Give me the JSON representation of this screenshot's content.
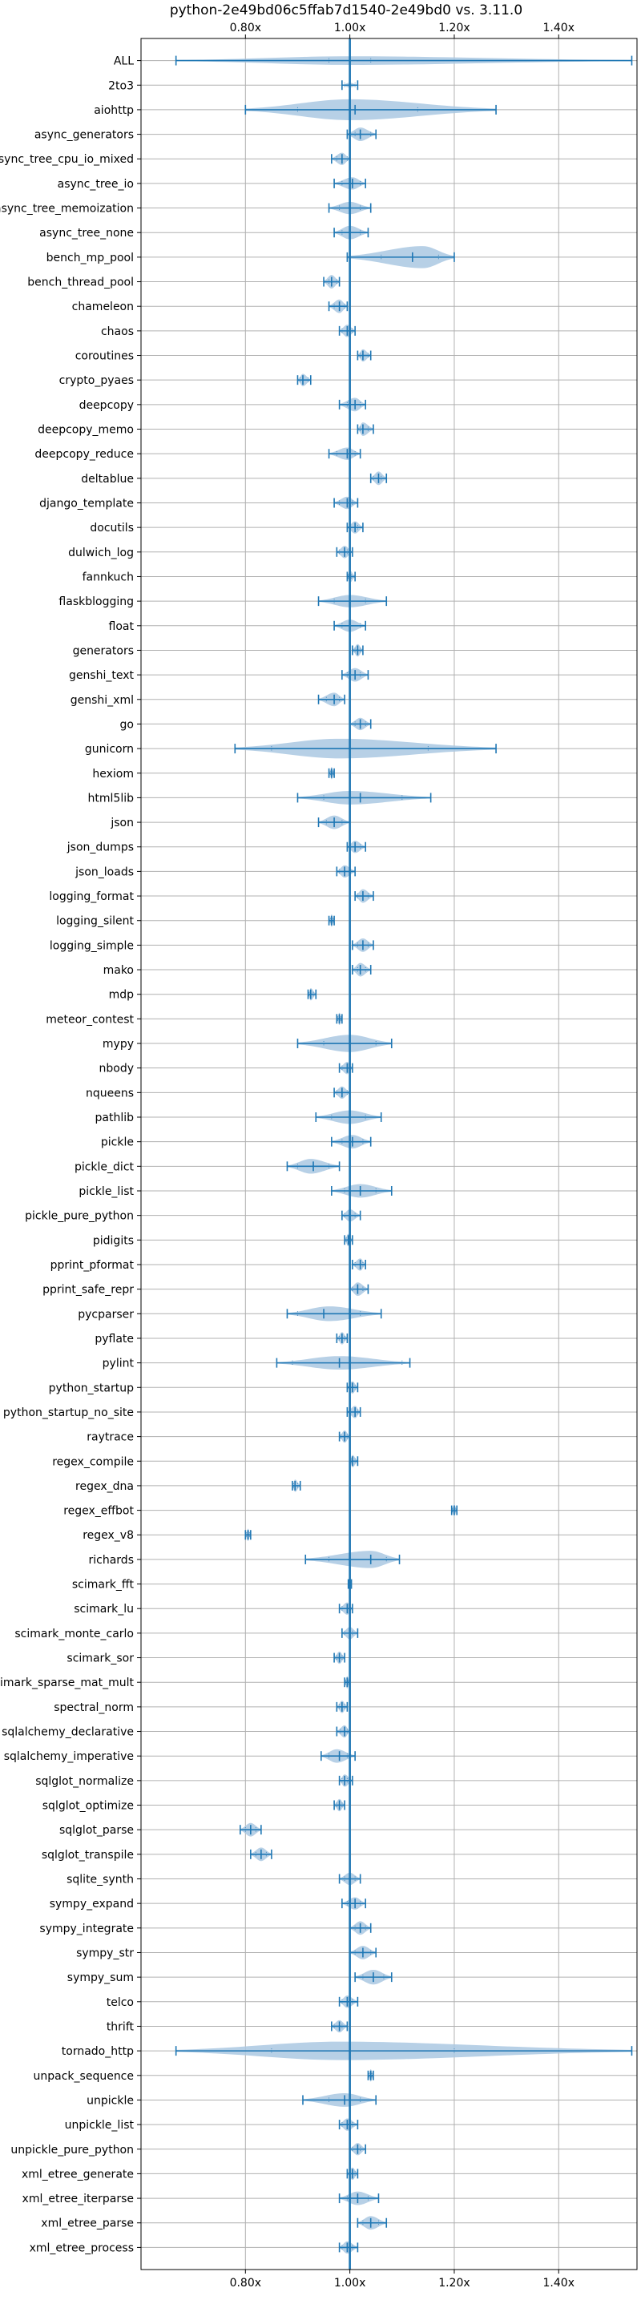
{
  "chart_data": {
    "type": "violin",
    "title": "python-2e49bd06c5ffab7d1540-2e49bd0 vs. 3.11.0",
    "xlabel": "",
    "ylabel": "",
    "xlim": [
      0.6,
      1.55
    ],
    "xticks": [
      0.8,
      1.0,
      1.2,
      1.4
    ],
    "xtick_labels": [
      "0.80x",
      "1.00x",
      "1.20x",
      "1.40x"
    ],
    "tick_positions": [
      "top",
      "bottom"
    ],
    "grid": true,
    "reference_line": 1.0,
    "colors": {
      "violin": "#aac8e2",
      "line": "#1f77b4",
      "grid": "#b0b0b0",
      "axis": "#000000"
    },
    "categories": [
      "ALL",
      "2to3",
      "aiohttp",
      "async_generators",
      "async_tree_cpu_io_mixed",
      "async_tree_io",
      "async_tree_memoization",
      "async_tree_none",
      "bench_mp_pool",
      "bench_thread_pool",
      "chameleon",
      "chaos",
      "coroutines",
      "crypto_pyaes",
      "deepcopy",
      "deepcopy_memo",
      "deepcopy_reduce",
      "deltablue",
      "django_template",
      "docutils",
      "dulwich_log",
      "fannkuch",
      "flaskblogging",
      "float",
      "generators",
      "genshi_text",
      "genshi_xml",
      "go",
      "gunicorn",
      "hexiom",
      "html5lib",
      "json",
      "json_dumps",
      "json_loads",
      "logging_format",
      "logging_silent",
      "logging_simple",
      "mako",
      "mdp",
      "meteor_contest",
      "mypy",
      "nbody",
      "nqueens",
      "pathlib",
      "pickle",
      "pickle_dict",
      "pickle_list",
      "pickle_pure_python",
      "pidigits",
      "pprint_pformat",
      "pprint_safe_repr",
      "pycparser",
      "pyflate",
      "pylint",
      "python_startup",
      "python_startup_no_site",
      "raytrace",
      "regex_compile",
      "regex_dna",
      "regex_effbot",
      "regex_v8",
      "richards",
      "scimark_fft",
      "scimark_lu",
      "scimark_monte_carlo",
      "scimark_sor",
      "scimark_sparse_mat_mult",
      "spectral_norm",
      "sqlalchemy_declarative",
      "sqlalchemy_imperative",
      "sqlglot_normalize",
      "sqlglot_optimize",
      "sqlglot_parse",
      "sqlglot_transpile",
      "sqlite_synth",
      "sympy_expand",
      "sympy_integrate",
      "sympy_str",
      "sympy_sum",
      "telco",
      "thrift",
      "tornado_http",
      "unpack_sequence",
      "unpickle",
      "unpickle_list",
      "unpickle_pure_python",
      "xml_etree_generate",
      "xml_etree_iterparse",
      "xml_etree_parse",
      "xml_etree_process"
    ],
    "series": [
      {
        "min": 0.667,
        "q1": 0.96,
        "median": 1.0,
        "mean": 1.0,
        "q3": 1.04,
        "max": 1.54,
        "peak": 1.0,
        "width": 0.35
      },
      {
        "min": 0.985,
        "q1": 0.99,
        "median": 1.0,
        "mean": 1.0,
        "q3": 1.01,
        "max": 1.015,
        "peak": 1.0,
        "width": 0.2
      },
      {
        "min": 0.8,
        "q1": 0.9,
        "median": 1.01,
        "mean": 1.01,
        "q3": 1.13,
        "max": 1.28,
        "peak": 1.0,
        "width": 0.85
      },
      {
        "min": 0.995,
        "q1": 1.01,
        "median": 1.02,
        "mean": 1.02,
        "q3": 1.04,
        "max": 1.05,
        "peak": 1.02,
        "width": 0.55
      },
      {
        "min": 0.965,
        "q1": 0.975,
        "median": 0.985,
        "mean": 0.985,
        "q3": 0.995,
        "max": 1.0,
        "peak": 0.985,
        "width": 0.5
      },
      {
        "min": 0.97,
        "q1": 0.985,
        "median": 1.005,
        "mean": 1.005,
        "q3": 1.02,
        "max": 1.03,
        "peak": 1.005,
        "width": 0.5
      },
      {
        "min": 0.96,
        "q1": 0.98,
        "median": 1.0,
        "mean": 1.0,
        "q3": 1.02,
        "max": 1.04,
        "peak": 1.0,
        "width": 0.5
      },
      {
        "min": 0.97,
        "q1": 0.985,
        "median": 1.0,
        "mean": 1.0,
        "q3": 1.02,
        "max": 1.035,
        "peak": 1.0,
        "width": 0.55
      },
      {
        "min": 0.995,
        "q1": 1.06,
        "median": 1.12,
        "mean": 1.12,
        "q3": 1.17,
        "max": 1.2,
        "peak": 1.14,
        "width": 0.9
      },
      {
        "min": 0.95,
        "q1": 0.96,
        "median": 0.965,
        "mean": 0.965,
        "q3": 0.975,
        "max": 0.98,
        "peak": 0.965,
        "width": 0.55
      },
      {
        "min": 0.96,
        "q1": 0.97,
        "median": 0.98,
        "mean": 0.98,
        "q3": 0.99,
        "max": 0.995,
        "peak": 0.98,
        "width": 0.55
      },
      {
        "min": 0.98,
        "q1": 0.985,
        "median": 0.995,
        "mean": 0.995,
        "q3": 1.005,
        "max": 1.01,
        "peak": 0.995,
        "width": 0.5
      },
      {
        "min": 1.015,
        "q1": 1.02,
        "median": 1.025,
        "mean": 1.025,
        "q3": 1.035,
        "max": 1.04,
        "peak": 1.025,
        "width": 0.5
      },
      {
        "min": 0.9,
        "q1": 0.905,
        "median": 0.91,
        "mean": 0.91,
        "q3": 0.92,
        "max": 0.925,
        "peak": 0.91,
        "width": 0.5
      },
      {
        "min": 0.98,
        "q1": 0.995,
        "median": 1.01,
        "mean": 1.01,
        "q3": 1.02,
        "max": 1.03,
        "peak": 1.01,
        "width": 0.55
      },
      {
        "min": 1.015,
        "q1": 1.02,
        "median": 1.025,
        "mean": 1.025,
        "q3": 1.035,
        "max": 1.045,
        "peak": 1.025,
        "width": 0.55
      },
      {
        "min": 0.96,
        "q1": 0.975,
        "median": 0.995,
        "mean": 0.995,
        "q3": 1.01,
        "max": 1.02,
        "peak": 0.995,
        "width": 0.5
      },
      {
        "min": 1.04,
        "q1": 1.045,
        "median": 1.055,
        "mean": 1.055,
        "q3": 1.06,
        "max": 1.07,
        "peak": 1.055,
        "width": 0.55
      },
      {
        "min": 0.97,
        "q1": 0.98,
        "median": 0.995,
        "mean": 0.995,
        "q3": 1.005,
        "max": 1.015,
        "peak": 0.995,
        "width": 0.5
      },
      {
        "min": 0.995,
        "q1": 1.0,
        "median": 1.01,
        "mean": 1.01,
        "q3": 1.015,
        "max": 1.025,
        "peak": 1.01,
        "width": 0.5
      },
      {
        "min": 0.975,
        "q1": 0.98,
        "median": 0.99,
        "mean": 0.99,
        "q3": 0.995,
        "max": 1.005,
        "peak": 0.99,
        "width": 0.5
      },
      {
        "min": 0.995,
        "q1": 0.997,
        "median": 1.0,
        "mean": 1.0,
        "q3": 1.003,
        "max": 1.01,
        "peak": 1.0,
        "width": 0.5
      },
      {
        "min": 0.94,
        "q1": 0.97,
        "median": 1.0,
        "mean": 1.0,
        "q3": 1.03,
        "max": 1.07,
        "peak": 1.0,
        "width": 0.5
      },
      {
        "min": 0.97,
        "q1": 0.985,
        "median": 1.0,
        "mean": 1.0,
        "q3": 1.02,
        "max": 1.03,
        "peak": 1.0,
        "width": 0.5
      },
      {
        "min": 1.005,
        "q1": 1.01,
        "median": 1.015,
        "mean": 1.015,
        "q3": 1.02,
        "max": 1.025,
        "peak": 1.015,
        "width": 0.5
      },
      {
        "min": 0.985,
        "q1": 0.995,
        "median": 1.01,
        "mean": 1.01,
        "q3": 1.02,
        "max": 1.035,
        "peak": 1.01,
        "width": 0.55
      },
      {
        "min": 0.94,
        "q1": 0.955,
        "median": 0.97,
        "mean": 0.97,
        "q3": 0.98,
        "max": 0.99,
        "peak": 0.97,
        "width": 0.55
      },
      {
        "min": 1.0,
        "q1": 1.01,
        "median": 1.02,
        "mean": 1.02,
        "q3": 1.03,
        "max": 1.04,
        "peak": 1.02,
        "width": 0.5
      },
      {
        "min": 0.78,
        "q1": 0.85,
        "median": 1.0,
        "mean": 1.0,
        "q3": 1.15,
        "max": 1.28,
        "peak": 0.98,
        "width": 0.8
      },
      {
        "min": 0.96,
        "q1": 0.963,
        "median": 0.965,
        "mean": 0.965,
        "q3": 0.968,
        "max": 0.97,
        "peak": 0.965,
        "width": 0.5
      },
      {
        "min": 0.9,
        "q1": 0.95,
        "median": 1.02,
        "mean": 1.02,
        "q3": 1.1,
        "max": 1.155,
        "peak": 1.0,
        "width": 0.55
      },
      {
        "min": 0.94,
        "q1": 0.955,
        "median": 0.97,
        "mean": 0.97,
        "q3": 0.985,
        "max": 1.0,
        "peak": 0.97,
        "width": 0.55
      },
      {
        "min": 0.995,
        "q1": 1.0,
        "median": 1.01,
        "mean": 1.01,
        "q3": 1.02,
        "max": 1.03,
        "peak": 1.01,
        "width": 0.5
      },
      {
        "min": 0.975,
        "q1": 0.98,
        "median": 0.99,
        "mean": 0.99,
        "q3": 1.0,
        "max": 1.01,
        "peak": 0.99,
        "width": 0.5
      },
      {
        "min": 1.01,
        "q1": 1.015,
        "median": 1.025,
        "mean": 1.025,
        "q3": 1.035,
        "max": 1.045,
        "peak": 1.025,
        "width": 0.55
      },
      {
        "min": 0.96,
        "q1": 0.963,
        "median": 0.965,
        "mean": 0.965,
        "q3": 0.968,
        "max": 0.97,
        "peak": 0.965,
        "width": 0.5
      },
      {
        "min": 1.005,
        "q1": 1.015,
        "median": 1.025,
        "mean": 1.025,
        "q3": 1.035,
        "max": 1.045,
        "peak": 1.025,
        "width": 0.55
      },
      {
        "min": 1.005,
        "q1": 1.015,
        "median": 1.02,
        "mean": 1.02,
        "q3": 1.03,
        "max": 1.04,
        "peak": 1.02,
        "width": 0.55
      },
      {
        "min": 0.92,
        "q1": 0.922,
        "median": 0.925,
        "mean": 0.925,
        "q3": 0.93,
        "max": 0.935,
        "peak": 0.925,
        "width": 0.5
      },
      {
        "min": 0.975,
        "q1": 0.977,
        "median": 0.98,
        "mean": 0.98,
        "q3": 0.983,
        "max": 0.985,
        "peak": 0.98,
        "width": 0.5
      },
      {
        "min": 0.9,
        "q1": 0.95,
        "median": 1.0,
        "mean": 1.0,
        "q3": 1.05,
        "max": 1.08,
        "peak": 1.0,
        "width": 0.7
      },
      {
        "min": 0.98,
        "q1": 0.985,
        "median": 0.995,
        "mean": 0.995,
        "q3": 1.0,
        "max": 1.005,
        "peak": 0.995,
        "width": 0.5
      },
      {
        "min": 0.97,
        "q1": 0.975,
        "median": 0.985,
        "mean": 0.985,
        "q3": 0.995,
        "max": 1.0,
        "peak": 0.985,
        "width": 0.5
      },
      {
        "min": 0.935,
        "q1": 0.965,
        "median": 1.0,
        "mean": 1.0,
        "q3": 1.03,
        "max": 1.06,
        "peak": 1.0,
        "width": 0.55
      },
      {
        "min": 0.965,
        "q1": 0.985,
        "median": 1.005,
        "mean": 1.005,
        "q3": 1.025,
        "max": 1.04,
        "peak": 1.005,
        "width": 0.55
      },
      {
        "min": 0.88,
        "q1": 0.9,
        "median": 0.93,
        "mean": 0.93,
        "q3": 0.96,
        "max": 0.98,
        "peak": 0.925,
        "width": 0.6
      },
      {
        "min": 0.965,
        "q1": 0.99,
        "median": 1.02,
        "mean": 1.02,
        "q3": 1.05,
        "max": 1.08,
        "peak": 1.02,
        "width": 0.55
      },
      {
        "min": 0.985,
        "q1": 0.99,
        "median": 1.0,
        "mean": 1.0,
        "q3": 1.01,
        "max": 1.02,
        "peak": 1.0,
        "width": 0.5
      },
      {
        "min": 0.99,
        "q1": 0.993,
        "median": 0.997,
        "mean": 0.997,
        "q3": 1.0,
        "max": 1.005,
        "peak": 0.997,
        "width": 0.5
      },
      {
        "min": 1.005,
        "q1": 1.01,
        "median": 1.02,
        "mean": 1.02,
        "q3": 1.025,
        "max": 1.03,
        "peak": 1.02,
        "width": 0.5
      },
      {
        "min": 1.0,
        "q1": 1.005,
        "median": 1.015,
        "mean": 1.015,
        "q3": 1.025,
        "max": 1.035,
        "peak": 1.015,
        "width": 0.55
      },
      {
        "min": 0.88,
        "q1": 0.9,
        "median": 0.95,
        "mean": 0.96,
        "q3": 1.02,
        "max": 1.06,
        "peak": 0.96,
        "width": 0.6
      },
      {
        "min": 0.975,
        "q1": 0.98,
        "median": 0.985,
        "mean": 0.985,
        "q3": 0.99,
        "max": 0.995,
        "peak": 0.985,
        "width": 0.5
      },
      {
        "min": 0.86,
        "q1": 0.89,
        "median": 0.98,
        "mean": 0.985,
        "q3": 1.1,
        "max": 1.115,
        "peak": 0.98,
        "width": 0.55
      },
      {
        "min": 0.995,
        "q1": 1.0,
        "median": 1.005,
        "mean": 1.005,
        "q3": 1.01,
        "max": 1.015,
        "peak": 1.005,
        "width": 0.5
      },
      {
        "min": 0.995,
        "q1": 1.0,
        "median": 1.01,
        "mean": 1.01,
        "q3": 1.015,
        "max": 1.02,
        "peak": 1.01,
        "width": 0.5
      },
      {
        "min": 0.98,
        "q1": 0.983,
        "median": 0.99,
        "mean": 0.99,
        "q3": 0.995,
        "max": 1.0,
        "peak": 0.99,
        "width": 0.5
      },
      {
        "min": 1.0,
        "q1": 1.003,
        "median": 1.005,
        "mean": 1.005,
        "q3": 1.01,
        "max": 1.015,
        "peak": 1.005,
        "width": 0.5
      },
      {
        "min": 0.89,
        "q1": 0.892,
        "median": 0.895,
        "mean": 0.895,
        "q3": 0.9,
        "max": 0.905,
        "peak": 0.895,
        "width": 0.5
      },
      {
        "min": 1.195,
        "q1": 1.197,
        "median": 1.2,
        "mean": 1.2,
        "q3": 1.202,
        "max": 1.205,
        "peak": 1.2,
        "width": 0.5
      },
      {
        "min": 0.8,
        "q1": 0.802,
        "median": 0.805,
        "mean": 0.805,
        "q3": 0.808,
        "max": 0.81,
        "peak": 0.805,
        "width": 0.5
      },
      {
        "min": 0.915,
        "q1": 0.96,
        "median": 1.04,
        "mean": 1.04,
        "q3": 1.07,
        "max": 1.095,
        "peak": 1.04,
        "width": 0.7
      },
      {
        "min": 0.997,
        "q1": 0.998,
        "median": 1.0,
        "mean": 1.0,
        "q3": 1.001,
        "max": 1.003,
        "peak": 1.0,
        "width": 0.5
      },
      {
        "min": 0.98,
        "q1": 0.985,
        "median": 0.995,
        "mean": 0.995,
        "q3": 1.0,
        "max": 1.005,
        "peak": 0.995,
        "width": 0.5
      },
      {
        "min": 0.985,
        "q1": 0.99,
        "median": 1.0,
        "mean": 1.0,
        "q3": 1.005,
        "max": 1.015,
        "peak": 1.0,
        "width": 0.5
      },
      {
        "min": 0.97,
        "q1": 0.975,
        "median": 0.98,
        "mean": 0.98,
        "q3": 0.985,
        "max": 0.99,
        "peak": 0.98,
        "width": 0.5
      },
      {
        "min": 0.99,
        "q1": 0.992,
        "median": 0.995,
        "mean": 0.995,
        "q3": 0.997,
        "max": 1.0,
        "peak": 0.995,
        "width": 0.5
      },
      {
        "min": 0.975,
        "q1": 0.98,
        "median": 0.985,
        "mean": 0.985,
        "q3": 0.99,
        "max": 0.995,
        "peak": 0.985,
        "width": 0.5
      },
      {
        "min": 0.975,
        "q1": 0.982,
        "median": 0.99,
        "mean": 0.99,
        "q3": 0.995,
        "max": 1.0,
        "peak": 0.99,
        "width": 0.5
      },
      {
        "min": 0.945,
        "q1": 0.96,
        "median": 0.98,
        "mean": 0.98,
        "q3": 0.995,
        "max": 1.01,
        "peak": 0.975,
        "width": 0.55
      },
      {
        "min": 0.98,
        "q1": 0.985,
        "median": 0.99,
        "mean": 0.99,
        "q3": 0.995,
        "max": 1.005,
        "peak": 0.99,
        "width": 0.5
      },
      {
        "min": 0.97,
        "q1": 0.975,
        "median": 0.98,
        "mean": 0.98,
        "q3": 0.985,
        "max": 0.99,
        "peak": 0.98,
        "width": 0.5
      },
      {
        "min": 0.79,
        "q1": 0.8,
        "median": 0.81,
        "mean": 0.81,
        "q3": 0.82,
        "max": 0.83,
        "peak": 0.81,
        "width": 0.55
      },
      {
        "min": 0.81,
        "q1": 0.82,
        "median": 0.83,
        "mean": 0.83,
        "q3": 0.84,
        "max": 0.85,
        "peak": 0.83,
        "width": 0.55
      },
      {
        "min": 0.98,
        "q1": 0.99,
        "median": 1.0,
        "mean": 1.0,
        "q3": 1.01,
        "max": 1.02,
        "peak": 1.0,
        "width": 0.5
      },
      {
        "min": 0.985,
        "q1": 0.995,
        "median": 1.01,
        "mean": 1.01,
        "q3": 1.02,
        "max": 1.03,
        "peak": 1.01,
        "width": 0.5
      },
      {
        "min": 1.0,
        "q1": 1.01,
        "median": 1.02,
        "mean": 1.02,
        "q3": 1.03,
        "max": 1.04,
        "peak": 1.02,
        "width": 0.55
      },
      {
        "min": 1.0,
        "q1": 1.01,
        "median": 1.025,
        "mean": 1.025,
        "q3": 1.04,
        "max": 1.05,
        "peak": 1.025,
        "width": 0.55
      },
      {
        "min": 1.01,
        "q1": 1.025,
        "median": 1.045,
        "mean": 1.045,
        "q3": 1.065,
        "max": 1.08,
        "peak": 1.045,
        "width": 0.6
      },
      {
        "min": 0.98,
        "q1": 0.985,
        "median": 0.995,
        "mean": 0.995,
        "q3": 1.005,
        "max": 1.015,
        "peak": 0.995,
        "width": 0.5
      },
      {
        "min": 0.965,
        "q1": 0.97,
        "median": 0.98,
        "mean": 0.98,
        "q3": 0.985,
        "max": 0.995,
        "peak": 0.98,
        "width": 0.5
      },
      {
        "min": 0.667,
        "q1": 0.85,
        "median": 1.0,
        "mean": 1.0,
        "q3": 1.2,
        "max": 1.54,
        "peak": 0.98,
        "width": 0.75
      },
      {
        "min": 1.035,
        "q1": 1.037,
        "median": 1.04,
        "mean": 1.04,
        "q3": 1.042,
        "max": 1.045,
        "peak": 1.04,
        "width": 0.5
      },
      {
        "min": 0.91,
        "q1": 0.96,
        "median": 0.99,
        "mean": 0.99,
        "q3": 1.02,
        "max": 1.05,
        "peak": 0.99,
        "width": 0.55
      },
      {
        "min": 0.98,
        "q1": 0.985,
        "median": 0.995,
        "mean": 0.995,
        "q3": 1.005,
        "max": 1.015,
        "peak": 0.995,
        "width": 0.5
      },
      {
        "min": 1.0,
        "q1": 1.005,
        "median": 1.015,
        "mean": 1.015,
        "q3": 1.02,
        "max": 1.03,
        "peak": 1.015,
        "width": 0.5
      },
      {
        "min": 0.995,
        "q1": 1.0,
        "median": 1.005,
        "mean": 1.005,
        "q3": 1.01,
        "max": 1.015,
        "peak": 1.005,
        "width": 0.5
      },
      {
        "min": 0.98,
        "q1": 0.995,
        "median": 1.015,
        "mean": 1.015,
        "q3": 1.035,
        "max": 1.055,
        "peak": 1.015,
        "width": 0.55
      },
      {
        "min": 1.015,
        "q1": 1.025,
        "median": 1.04,
        "mean": 1.04,
        "q3": 1.055,
        "max": 1.07,
        "peak": 1.04,
        "width": 0.55
      },
      {
        "min": 0.98,
        "q1": 0.985,
        "median": 0.995,
        "mean": 1.0,
        "q3": 1.005,
        "max": 1.015,
        "peak": 0.995,
        "width": 0.5
      }
    ]
  }
}
